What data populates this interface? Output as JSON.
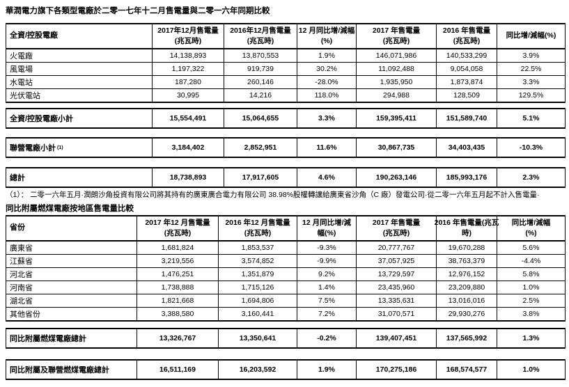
{
  "colors": {
    "text": "#000000",
    "border": "#000000",
    "background": "#ffffff"
  },
  "document": {
    "title1": "華潤電力旗下各類型電廠於二零一七年十二月售電量與二零一六年同期比較",
    "footnote": "（1）： 二零一六年五月·潤朗沙角投資有限公司將其持有的廣東廣合電力有限公司 38.98%股權轉讓給廣東省沙角（C 廠）發電公司·從二零一六年五月起不計入售電量·",
    "title2": "同比附屬燃煤電廠按地區售電量比較"
  },
  "table1": {
    "headers": [
      [
        "全資/控股電廠",
        ""
      ],
      [
        "2017年12月售電量",
        "(兆瓦時)"
      ],
      [
        "2016年12月售電量",
        "(兆瓦時)"
      ],
      [
        "12 月同比增/減幅",
        "(%)"
      ],
      [
        "2017 年售電量",
        "(兆瓦時)"
      ],
      [
        "2016 年售電量",
        "(兆瓦時)"
      ],
      [
        "同比增/減幅(%)",
        ""
      ]
    ],
    "rows": [
      [
        "火電廠",
        "14,138,893",
        "13,870,553",
        "1.9%",
        "146,071,986",
        "140,533,299",
        "3.9%"
      ],
      [
        "風電場",
        "1,197,322",
        "919,739",
        "30.2%",
        "11,092,488",
        "9,054,058",
        "22.5%"
      ],
      [
        "水電站",
        "187,280",
        "260,146",
        "-28.0%",
        "1,935,950",
        "1,873,874",
        "3.3%"
      ],
      [
        "光伏電站",
        "30,995",
        "14,216",
        "118.0%",
        "294,988",
        "128,509",
        "129.5%"
      ]
    ],
    "subtotal_rows": [
      {
        "label": "全資/控股電廠小計",
        "sup": "",
        "values": [
          "15,554,491",
          "15,064,655",
          "3.3%",
          "159,395,411",
          "151,589,740",
          "5.1%"
        ]
      },
      {
        "label": "聯營電廠小計",
        "sup": "(1)",
        "values": [
          "3,184,402",
          "2,852,951",
          "11.6%",
          "30,867,735",
          "34,403,435",
          "-10.3%"
        ]
      },
      {
        "label": "總計",
        "sup": "",
        "values": [
          "18,738,893",
          "17,917,605",
          "4.6%",
          "190,263,146",
          "185,993,176",
          "2.3%"
        ]
      }
    ]
  },
  "table2": {
    "headers": [
      [
        "省份",
        ""
      ],
      [
        "2017 年12 月售電量",
        "(兆瓦時)"
      ],
      [
        "2016 年12 月售電量",
        "(兆瓦時)"
      ],
      [
        "12 月同比增/減",
        "幅(%)"
      ],
      [
        "2017 年售電量",
        "(兆瓦時)"
      ],
      [
        "2016 年售電量(兆瓦",
        "時)"
      ],
      [
        "同比增/減幅",
        "(%)"
      ]
    ],
    "rows": [
      [
        "廣東省",
        "1,681,824",
        "1,853,537",
        "-9.3%",
        "20,777,767",
        "19,670,288",
        "5.6%"
      ],
      [
        "江蘇省",
        "3,219,556",
        "3,574,852",
        "-9.9%",
        "37,057,925",
        "38,763,379",
        "-4.4%"
      ],
      [
        "河北省",
        "1,476,251",
        "1,351,879",
        "9.2%",
        "13,729,597",
        "12,976,152",
        "5.8%"
      ],
      [
        "河南省",
        "1,738,888",
        "1,715,126",
        "1.4%",
        "23,435,960",
        "23,209,880",
        "1.0%"
      ],
      [
        "湖北省",
        "1,821,668",
        "1,694,806",
        "7.5%",
        "13,335,631",
        "13,016,016",
        "2.5%"
      ],
      [
        "其他省份",
        "3,388,580",
        "3,160,441",
        "7.2%",
        "31,070,571",
        "29,930,276",
        "3.8%"
      ]
    ],
    "total_rows": [
      {
        "label": "同比附屬燃煤電廠總計",
        "sup": "",
        "values": [
          "13,326,767",
          "13,350,641",
          "-0.2%",
          "139,407,451",
          "137,565,992",
          "1.3%"
        ]
      },
      {
        "label": "同比附屬及聯營燃煤電廠總計",
        "sup": "",
        "values": [
          "16,511,169",
          "16,203,592",
          "1.9%",
          "170,275,186",
          "168,574,577",
          "1.0%"
        ]
      }
    ]
  }
}
